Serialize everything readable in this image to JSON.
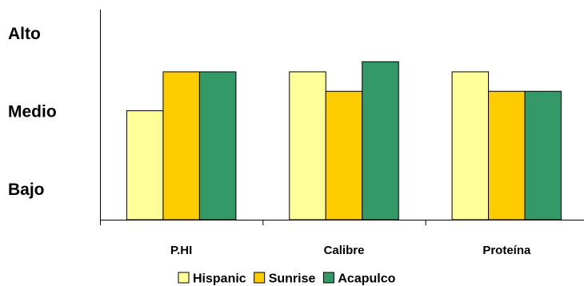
{
  "chart_data": {
    "type": "bar",
    "categories": [
      "P.HI",
      "Calibre",
      "Proteína"
    ],
    "y_levels": [
      {
        "label": "Bajo",
        "value": 1
      },
      {
        "label": "Medio",
        "value": 2
      },
      {
        "label": "Alto",
        "value": 3
      }
    ],
    "ylim": [
      0.6,
      3.3
    ],
    "series": [
      {
        "name": "Hispanic",
        "color": "#FFFF99",
        "values": [
          2.0,
          2.5,
          2.5
        ]
      },
      {
        "name": "Sunrise",
        "color": "#FFCC00",
        "values": [
          2.5,
          2.25,
          2.25
        ]
      },
      {
        "name": "Acapulco",
        "color": "#339966",
        "values": [
          2.5,
          2.63,
          2.25
        ]
      }
    ],
    "grid": false,
    "legend_position": "bottom"
  }
}
